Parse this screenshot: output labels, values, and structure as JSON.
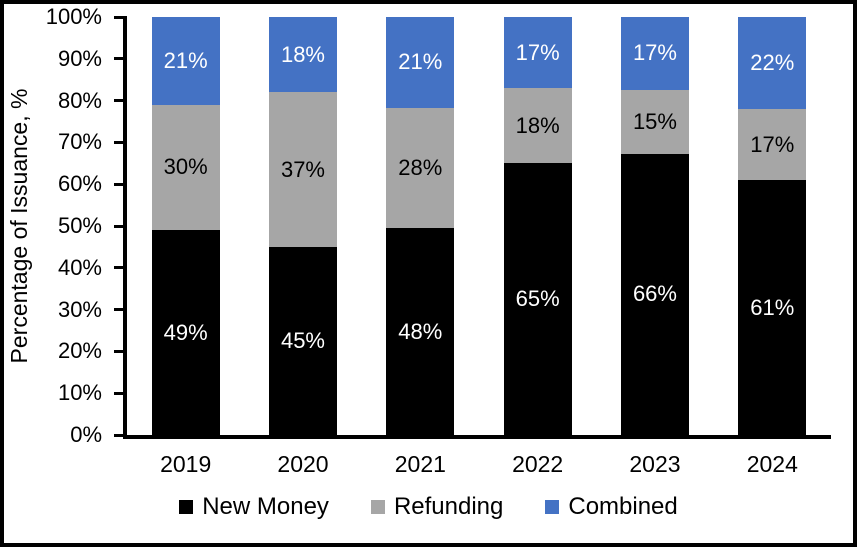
{
  "chart_data": {
    "type": "bar",
    "stacked": true,
    "percent_stacked": true,
    "title": "",
    "ylabel": "Percentage of Issuance, %",
    "xlabel": "",
    "categories": [
      "2019",
      "2020",
      "2021",
      "2022",
      "2023",
      "2024"
    ],
    "series": [
      {
        "name": "New Money",
        "color": "#000000",
        "label_color": "#FFFFFF",
        "values": [
          49,
          45,
          48,
          65,
          66,
          61
        ]
      },
      {
        "name": "Refunding",
        "color": "#A6A6A6",
        "label_color": "#000000",
        "values": [
          30,
          37,
          28,
          18,
          15,
          17
        ]
      },
      {
        "name": "Combined",
        "color": "#4472C4",
        "label_color": "#FFFFFF",
        "values": [
          21,
          18,
          21,
          17,
          17,
          22
        ]
      }
    ],
    "data_label_suffix": "%",
    "y_ticks": [
      "0%",
      "10%",
      "20%",
      "30%",
      "40%",
      "50%",
      "60%",
      "70%",
      "80%",
      "90%",
      "100%"
    ],
    "ylim": [
      0,
      100
    ],
    "grid": false,
    "legend_position": "bottom",
    "axis_color": "#000000",
    "background": "#FFFFFF"
  }
}
